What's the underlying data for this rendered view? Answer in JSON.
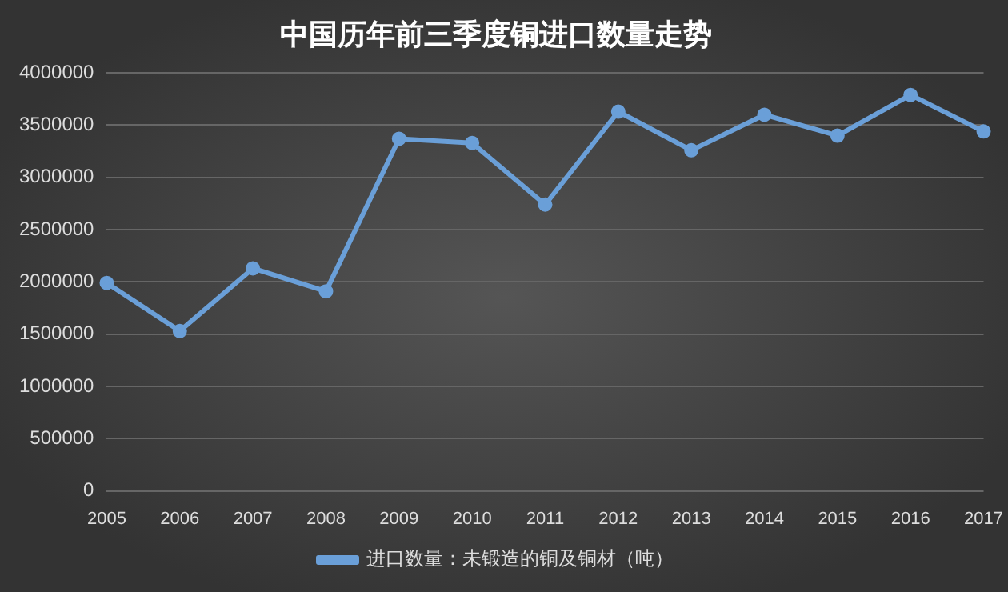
{
  "chart_data": {
    "type": "line",
    "title": "中国历年前三季度铜进口数量走势",
    "categories": [
      "2005",
      "2006",
      "2007",
      "2008",
      "2009",
      "2010",
      "2011",
      "2012",
      "2013",
      "2014",
      "2015",
      "2016",
      "2017"
    ],
    "series": [
      {
        "name": "进口数量：未锻造的铜及铜材（吨）",
        "color": "#6a9fd8",
        "values": [
          1990000,
          1530000,
          2130000,
          1910000,
          3370000,
          3330000,
          2740000,
          3630000,
          3260000,
          3600000,
          3400000,
          3790000,
          3440000
        ]
      }
    ],
    "ylim": [
      0,
      4000000
    ],
    "yticks": [
      0,
      500000,
      1000000,
      1500000,
      2000000,
      2500000,
      3000000,
      3500000,
      4000000
    ],
    "grid": "y",
    "legend": "bottom",
    "marker": "circle",
    "line_style": "solid"
  }
}
